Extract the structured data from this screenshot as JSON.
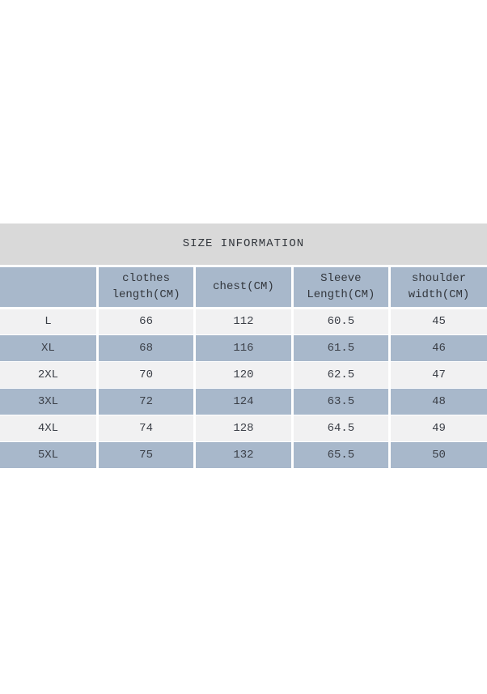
{
  "title": "SIZE INFORMATION",
  "colors": {
    "title_bg": "#d9d9d9",
    "header_bg": "#a8b8cb",
    "row_blue_bg": "#a8b8cb",
    "row_light_bg": "#f1f1f2",
    "divider": "#ffffff",
    "text": "#3b3f47"
  },
  "chart_data": {
    "type": "table",
    "title": "SIZE INFORMATION",
    "columns": [
      "",
      "clothes length(CM)",
      "chest(CM)",
      "Sleeve Length(CM)",
      "shoulder width(CM)"
    ],
    "rows": [
      [
        "L",
        "66",
        "112",
        "60.5",
        "45"
      ],
      [
        "XL",
        "68",
        "116",
        "61.5",
        "46"
      ],
      [
        "2XL",
        "70",
        "120",
        "62.5",
        "47"
      ],
      [
        "3XL",
        "72",
        "124",
        "63.5",
        "48"
      ],
      [
        "4XL",
        "74",
        "128",
        "64.5",
        "49"
      ],
      [
        "5XL",
        "75",
        "132",
        "65.5",
        "50"
      ]
    ]
  }
}
